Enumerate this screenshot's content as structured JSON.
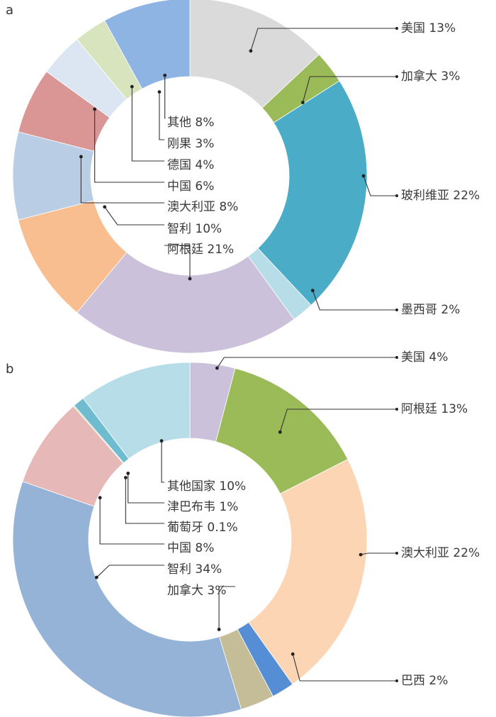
{
  "chart_data": [
    {
      "type": "pie",
      "panel": "a",
      "title": "",
      "slices": [
        {
          "label": "美国 13%",
          "value": 13,
          "color": "#dadada"
        },
        {
          "label": "加拿大 3%",
          "value": 3,
          "color": "#9bbb59"
        },
        {
          "label": "玻利维亚 22%",
          "value": 22,
          "color": "#4aacc6"
        },
        {
          "label": "墨西哥 2%",
          "value": 2,
          "color": "#b7dde8"
        },
        {
          "label": "阿根廷 21%",
          "value": 21,
          "color": "#ccc1da"
        },
        {
          "label": "智利 10%",
          "value": 10,
          "color": "#f9be8f"
        },
        {
          "label": "澳大利亚 8%",
          "value": 8,
          "color": "#b9cde5"
        },
        {
          "label": "中国 6%",
          "value": 6,
          "color": "#d99694"
        },
        {
          "label": "德国 4%",
          "value": 4,
          "color": "#dce6f2"
        },
        {
          "label": "刚果 3%",
          "value": 3,
          "color": "#d7e4bd"
        },
        {
          "label": "其他 8%",
          "value": 8,
          "color": "#8eb4e3"
        }
      ]
    },
    {
      "type": "pie",
      "panel": "b",
      "title": "",
      "slices": [
        {
          "label": "美国 4%",
          "value": 4,
          "color": "#ccc1da"
        },
        {
          "label": "阿根廷 13%",
          "value": 13,
          "color": "#9bbb59"
        },
        {
          "label": "澳大利亚 22%",
          "value": 22,
          "color": "#fcd5b5"
        },
        {
          "label": "巴西 2%",
          "value": 2,
          "color": "#558ed5"
        },
        {
          "label": "加拿大 3%",
          "value": 3,
          "color": "#c4bd97"
        },
        {
          "label": "智利 34%",
          "value": 34,
          "color": "#95b3d7"
        },
        {
          "label": "中国 8%",
          "value": 8,
          "color": "#e6b9b8"
        },
        {
          "label": "葡萄牙 0.1%",
          "value": 0.1,
          "color": "#c3d69b"
        },
        {
          "label": "津巴布韦 1%",
          "value": 1,
          "color": "#6fbcd0"
        },
        {
          "label": "其他国家 10%",
          "value": 10,
          "color": "#b7dde8"
        }
      ]
    }
  ]
}
